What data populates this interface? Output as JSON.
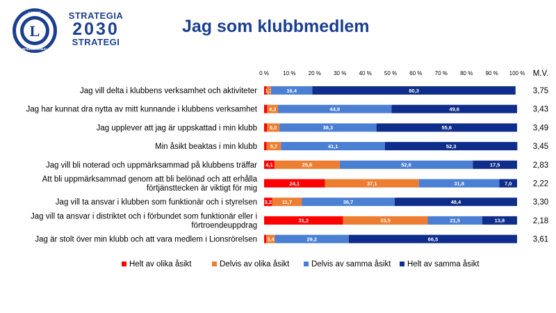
{
  "header": {
    "brand_line1": "STRATEGIA",
    "brand_line2": "2030",
    "brand_line3": "STRATEGI",
    "logo_text_top": "LIONS",
    "logo_text_bottom": "INTERNATIONAL",
    "logo_letter": "L",
    "title": "Jag som klubbmedlem"
  },
  "chart_data": {
    "type": "bar",
    "orientation": "horizontal",
    "stacked": "100%",
    "categories": [
      [
        "Jag vill delta i klubbens verksamhet och aktiviteter"
      ],
      [
        "Jag har kunnat dra nytta av mitt kunnande i klubbens verksamhet"
      ],
      [
        "Jag upplever att jag är uppskattad i min klubb"
      ],
      [
        "Min åsikt beaktas i min klubb"
      ],
      [
        "Jag vill bli noterad och uppmärksammad på klubbens träffar"
      ],
      [
        "Att bli uppmärksammad genom att bli belönad och att erhålla",
        "förtjänsttecken är viktigt för mig"
      ],
      [
        "Jag vill ta ansvar i klubben som funktionär och i styrelsen"
      ],
      [
        "Jag vill ta ansvar i distriktet och i förbundet som funktionär eller i",
        "förtroendeuppdrag"
      ],
      [
        "Jag är stolt över min klubb och att vara medlem i Lionsrörelsen"
      ]
    ],
    "series": [
      {
        "name": "Helt av olika åsikt",
        "color": "#ff0000",
        "values": [
          1.0,
          1.2,
          1.1,
          1.0,
          4.1,
          24.1,
          3.2,
          31.2,
          0.9
        ],
        "labels": [
          "",
          "",
          "",
          "",
          "4,1",
          "24,1",
          "3,2",
          "31,2",
          ""
        ]
      },
      {
        "name": "Delvis av olika åsikt",
        "color": "#ed7d31",
        "values": [
          1.7,
          4.3,
          5.0,
          5.7,
          25.8,
          37.1,
          11.7,
          33.5,
          3.4
        ],
        "labels": [
          "1,7",
          "4,3",
          "5,0",
          "5,7",
          "25,8",
          "37,1",
          "11,7",
          "33,5",
          "3,4"
        ]
      },
      {
        "name": "Delvis av samma åsikt",
        "color": "#4a7fd4",
        "values": [
          16.4,
          44.9,
          38.3,
          41.1,
          52.6,
          31.8,
          36.7,
          21.5,
          29.2
        ],
        "labels": [
          "16,4",
          "44,9",
          "38,3",
          "41,1",
          "52,6",
          "31,8",
          "36,7",
          "21,5",
          "29,2"
        ]
      },
      {
        "name": "Helt av samma åsikt",
        "color": "#0f2d8a",
        "values": [
          80.3,
          49.6,
          55.6,
          52.3,
          17.5,
          7.0,
          48.4,
          13.8,
          66.5
        ],
        "labels": [
          "80,3",
          "49,6",
          "55,6",
          "52,3",
          "17,5",
          "7,0",
          "48,4",
          "13,8",
          "66,5"
        ]
      }
    ],
    "xlim": [
      0,
      100
    ],
    "x_ticks": [
      "0 %",
      "10 %",
      "20 %",
      "30 %",
      "40 %",
      "50 %",
      "60 %",
      "70 %",
      "80 %",
      "90 %",
      "100 %"
    ],
    "mv_header": "M.V.",
    "mv_values": [
      "3,75",
      "3,43",
      "3,49",
      "3,45",
      "2,83",
      "2,22",
      "3,30",
      "2,18",
      "3,61"
    ],
    "legend_position": "bottom",
    "grid": false
  }
}
